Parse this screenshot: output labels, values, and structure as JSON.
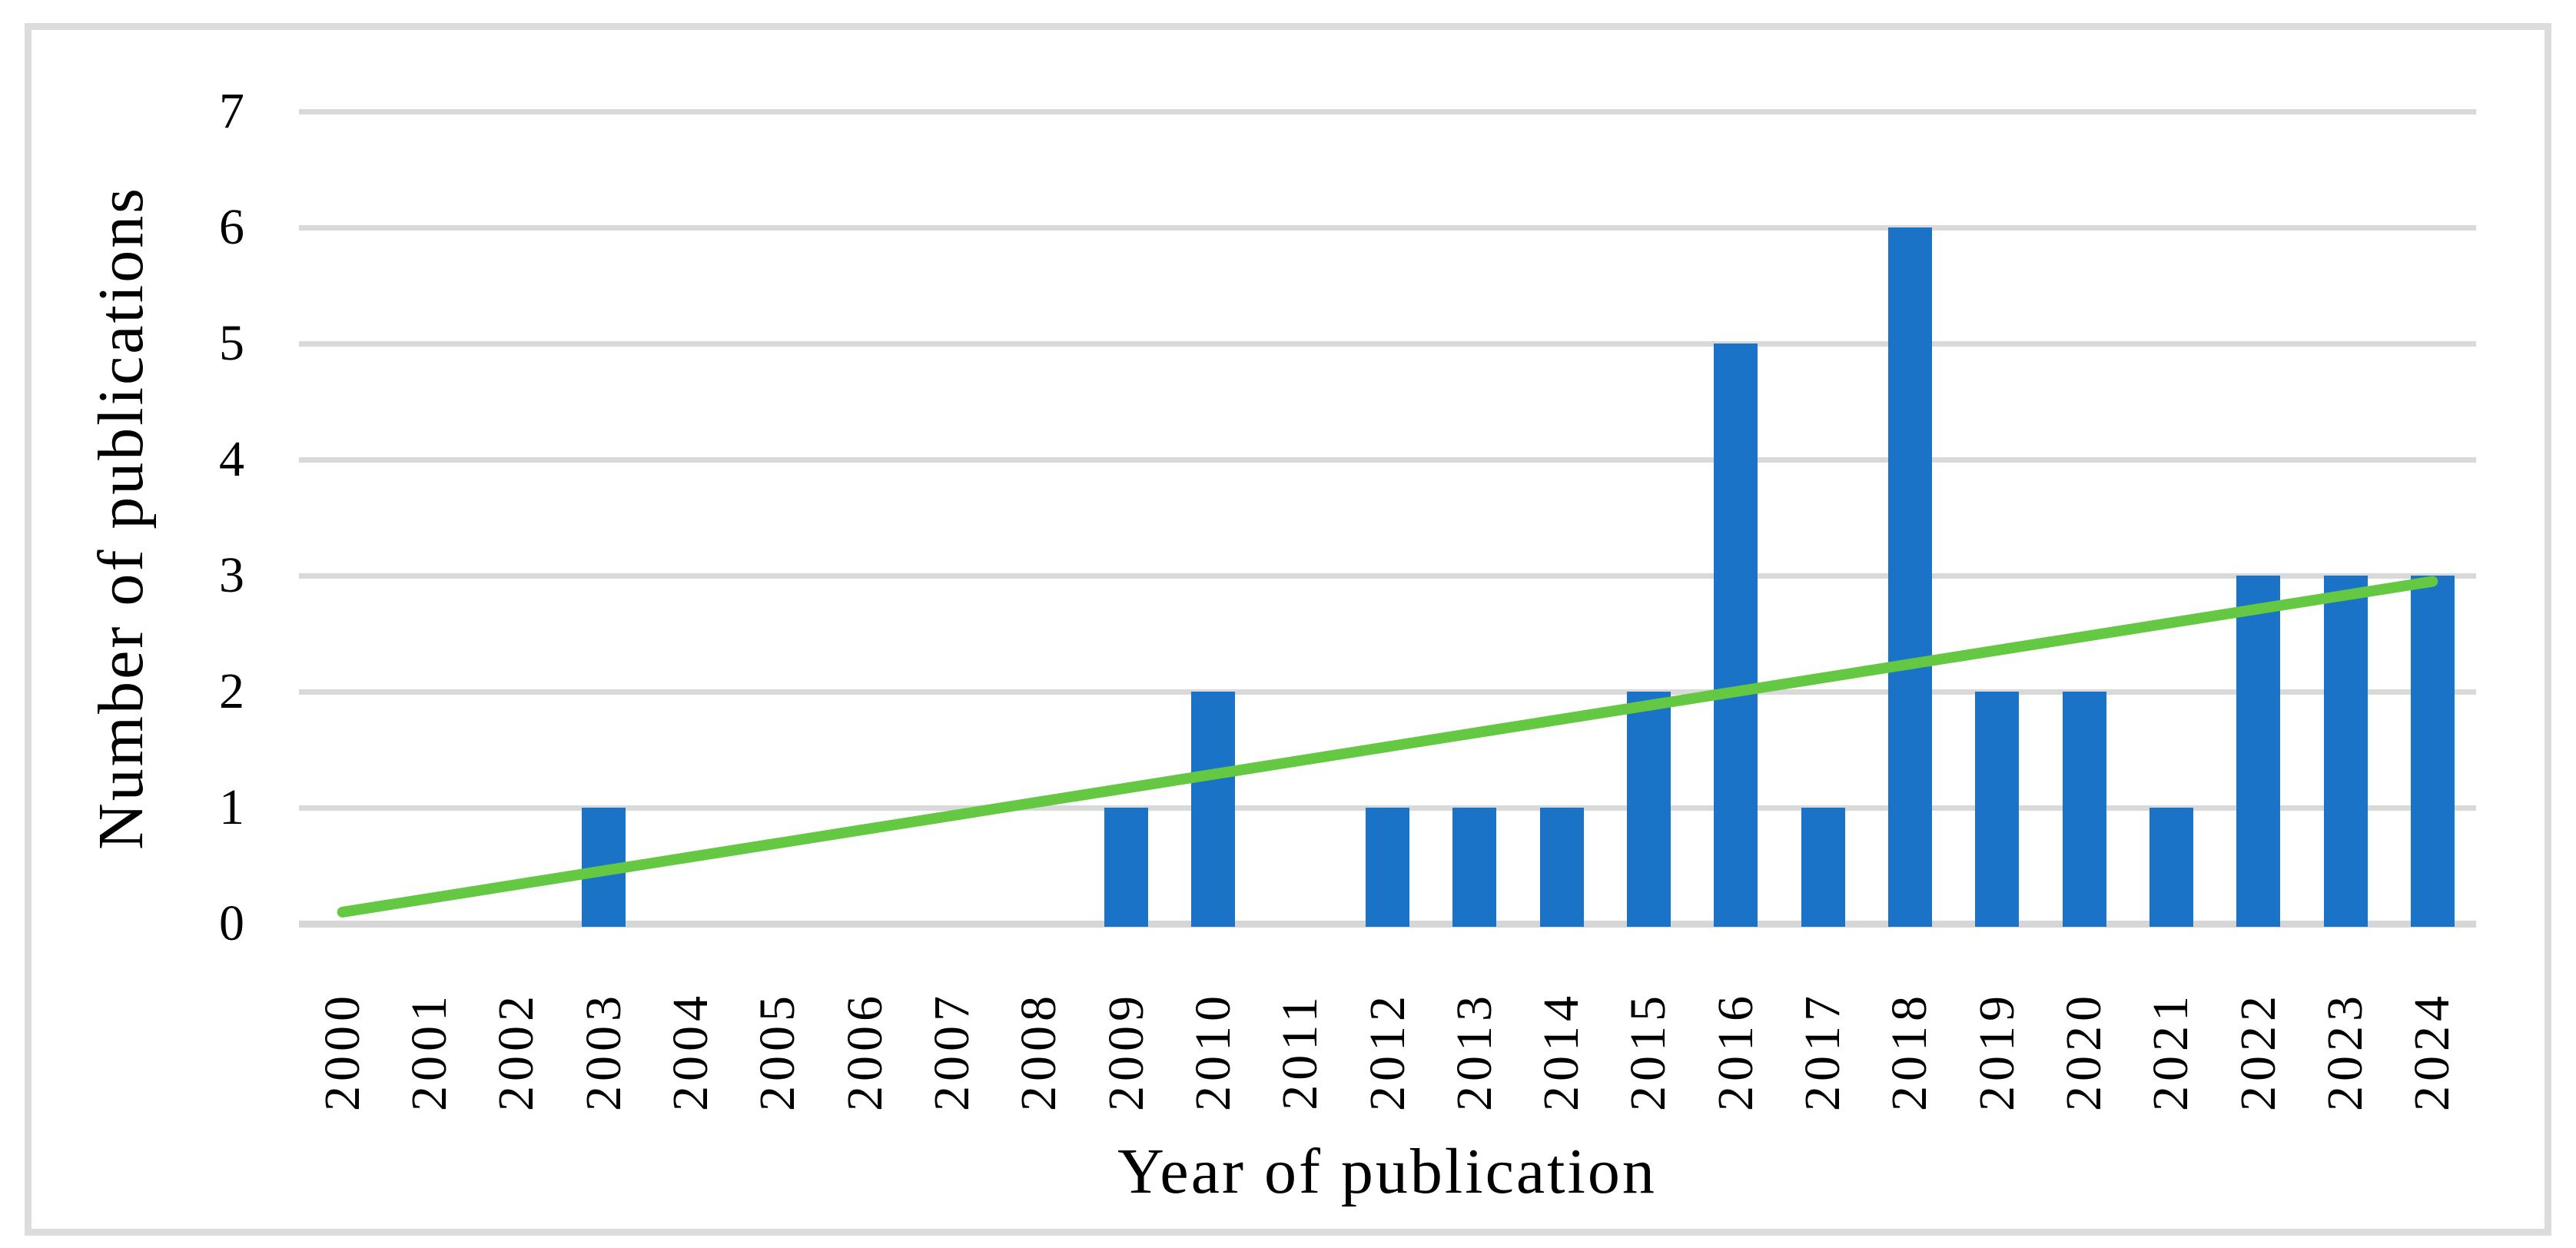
{
  "chart_data": {
    "type": "bar",
    "title": "",
    "xlabel": "Year of publication",
    "ylabel": "Number of publications",
    "categories": [
      "2000",
      "2001",
      "2002",
      "2003",
      "2004",
      "2005",
      "2006",
      "2007",
      "2008",
      "2009",
      "2010",
      "2011",
      "2012",
      "2013",
      "2014",
      "2015",
      "2016",
      "2017",
      "2018",
      "2019",
      "2020",
      "2021",
      "2022",
      "2023",
      "2024"
    ],
    "values": [
      0,
      0,
      0,
      1,
      0,
      0,
      0,
      0,
      0,
      1,
      2,
      0,
      1,
      1,
      1,
      2,
      5,
      1,
      6,
      2,
      2,
      1,
      3,
      3,
      3
    ],
    "ylim": [
      0,
      7
    ],
    "yticks": [
      0,
      1,
      2,
      3,
      4,
      5,
      6,
      7
    ],
    "grid": "horizontal",
    "legend": "none",
    "trendline": {
      "type": "linear",
      "start_category": "2000",
      "start_value": 0.1,
      "end_category": "2024",
      "end_value": 2.95
    },
    "colors": {
      "bar": "#1B73C7",
      "trendline": "#64C843",
      "gridline": "#D9D9D9",
      "axis_line": "#D6D6D6",
      "frame": "#DCDCDC",
      "text": "#000000",
      "background": "#FFFFFF"
    }
  }
}
